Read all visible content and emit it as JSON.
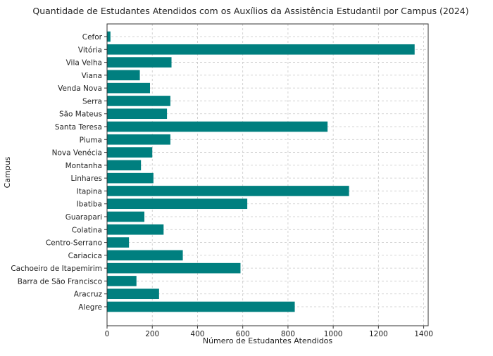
{
  "chart_data": {
    "type": "bar",
    "orientation": "horizontal",
    "title": "Quantidade de Estudantes Atendidos com os Auxílios da Assistência Estudantil por Campus (2024)",
    "xlabel": "Número de Estudantes Atendidos",
    "ylabel": "Campus",
    "xlim": [
      0,
      1420
    ],
    "xticks": [
      0,
      200,
      400,
      600,
      800,
      1000,
      1200,
      1400
    ],
    "grid": true,
    "bar_color": "#007f7f",
    "categories": [
      "Cefor",
      "Vitória",
      "Vila Velha",
      "Viana",
      "Venda Nova",
      "Serra",
      "São Mateus",
      "Santa Teresa",
      "Piuma",
      "Nova Venécia",
      "Montanha",
      "Linhares",
      "Itapina",
      "Ibatiba",
      "Guarapari",
      "Colatina",
      "Centro-Serrano",
      "Cariacica",
      "Cachoeiro de Itapemirim",
      "Barra de São Francisco",
      "Aracruz",
      "Alegre"
    ],
    "values": [
      15,
      1360,
      285,
      145,
      190,
      280,
      265,
      975,
      280,
      200,
      150,
      205,
      1070,
      620,
      165,
      250,
      97,
      335,
      590,
      130,
      230,
      830
    ]
  }
}
